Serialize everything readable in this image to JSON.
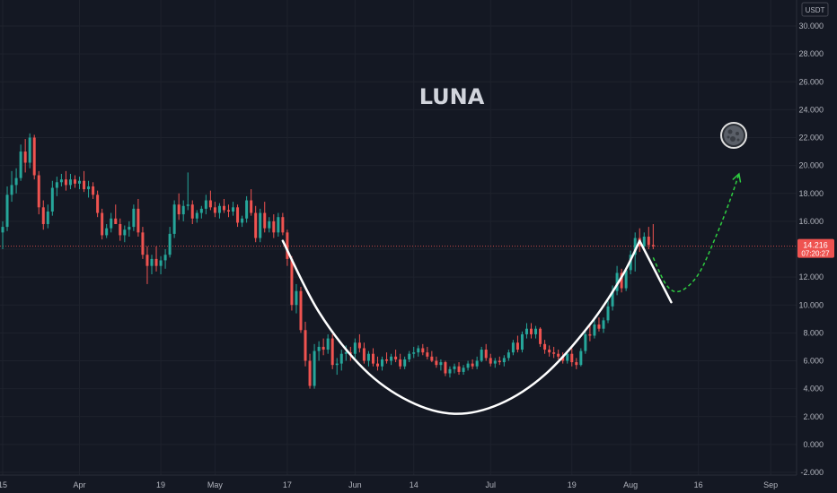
{
  "chart_data": {
    "type": "candlestick",
    "title": "LUNA",
    "currency": "USDT",
    "y_ticks": [
      "30.000",
      "28.000",
      "26.000",
      "24.000",
      "22.000",
      "20.000",
      "18.000",
      "16.000",
      "14.000",
      "12.000",
      "10.000",
      "8.000",
      "6.000",
      "4.000",
      "2.000",
      "0.000",
      "-2.000"
    ],
    "ylim": [
      -2.5,
      31
    ],
    "x_labels": [
      {
        "label": "15",
        "day": 0
      },
      {
        "label": "Apr",
        "day": 17
      },
      {
        "label": "19",
        "day": 35
      },
      {
        "label": "May",
        "day": 47
      },
      {
        "label": "17",
        "day": 63
      },
      {
        "label": "Jun",
        "day": 78
      },
      {
        "label": "14",
        "day": 91
      },
      {
        "label": "Jul",
        "day": 108
      },
      {
        "label": "19",
        "day": 126
      },
      {
        "label": "Aug",
        "day": 139
      },
      {
        "label": "16",
        "day": 154
      },
      {
        "label": "Sep",
        "day": 170
      }
    ],
    "x_range": [
      0,
      181
    ],
    "last_price": {
      "value": "14.216",
      "countdown": "07:20:27",
      "y": 14.216
    },
    "colors": {
      "up": "#26a69a",
      "down": "#ef5350",
      "background": "#141823",
      "grid": "#1e222d",
      "arrow": "#2ecc40",
      "pattern": "#ffffff"
    },
    "candles": [
      [
        0,
        15.2,
        16.0,
        14.0,
        15.6
      ],
      [
        1,
        15.6,
        18.5,
        15.3,
        17.9
      ],
      [
        2,
        17.9,
        19.6,
        17.4,
        18.6
      ],
      [
        3,
        18.6,
        19.8,
        18.0,
        19.1
      ],
      [
        4,
        19.1,
        21.5,
        18.9,
        21.0
      ],
      [
        5,
        21.0,
        21.9,
        19.5,
        20.2
      ],
      [
        6,
        20.2,
        22.3,
        19.8,
        22.0
      ],
      [
        7,
        22.0,
        22.2,
        19.0,
        19.3
      ],
      [
        8,
        19.3,
        19.6,
        16.5,
        17.0
      ],
      [
        9,
        17.0,
        17.5,
        15.4,
        15.8
      ],
      [
        10,
        15.8,
        17.2,
        15.5,
        16.7
      ],
      [
        11,
        16.7,
        18.9,
        16.4,
        18.4
      ],
      [
        12,
        18.4,
        19.2,
        17.8,
        18.8
      ],
      [
        13,
        18.8,
        19.4,
        18.5,
        19.0
      ],
      [
        14,
        19.0,
        19.6,
        18.2,
        18.6
      ],
      [
        15,
        18.6,
        19.4,
        18.3,
        19.0
      ],
      [
        16,
        19.0,
        19.3,
        18.4,
        18.7
      ],
      [
        17,
        18.7,
        19.2,
        18.3,
        18.9
      ],
      [
        18,
        18.9,
        19.6,
        18.1,
        18.3
      ],
      [
        19,
        18.3,
        18.9,
        17.7,
        18.5
      ],
      [
        20,
        18.5,
        18.8,
        17.6,
        17.9
      ],
      [
        21,
        17.9,
        18.2,
        16.3,
        16.6
      ],
      [
        22,
        16.6,
        16.9,
        14.7,
        15.0
      ],
      [
        23,
        15.0,
        15.8,
        14.8,
        15.5
      ],
      [
        24,
        15.5,
        16.6,
        15.2,
        16.2
      ],
      [
        25,
        16.2,
        17.2,
        15.8,
        15.8
      ],
      [
        26,
        15.8,
        16.2,
        14.6,
        15.0
      ],
      [
        27,
        15.0,
        15.7,
        14.5,
        15.4
      ],
      [
        28,
        15.4,
        16.0,
        14.9,
        15.6
      ],
      [
        29,
        15.6,
        17.2,
        15.3,
        16.9
      ],
      [
        30,
        16.9,
        17.6,
        14.9,
        15.2
      ],
      [
        31,
        15.2,
        15.6,
        13.3,
        13.6
      ],
      [
        32,
        13.6,
        14.2,
        11.5,
        12.8
      ],
      [
        33,
        12.8,
        13.6,
        12.2,
        13.3
      ],
      [
        34,
        13.3,
        14.2,
        12.4,
        12.8
      ],
      [
        35,
        12.8,
        13.5,
        12.2,
        13.2
      ],
      [
        36,
        13.2,
        14.0,
        12.6,
        13.6
      ],
      [
        37,
        13.6,
        15.6,
        13.4,
        15.1
      ],
      [
        38,
        15.1,
        17.5,
        14.8,
        17.2
      ],
      [
        39,
        17.2,
        18.0,
        16.1,
        16.5
      ],
      [
        40,
        16.5,
        17.5,
        16.0,
        17.1
      ],
      [
        41,
        17.1,
        19.5,
        16.8,
        17.2
      ],
      [
        42,
        17.2,
        17.5,
        15.8,
        16.2
      ],
      [
        43,
        16.2,
        16.8,
        15.9,
        16.6
      ],
      [
        44,
        16.6,
        17.1,
        16.2,
        16.9
      ],
      [
        45,
        16.9,
        17.9,
        16.5,
        17.5
      ],
      [
        46,
        17.5,
        18.2,
        16.8,
        17.0
      ],
      [
        47,
        17.0,
        17.4,
        16.3,
        16.6
      ],
      [
        48,
        16.6,
        17.3,
        16.2,
        17.1
      ],
      [
        49,
        17.1,
        17.6,
        16.6,
        16.8
      ],
      [
        50,
        16.8,
        17.2,
        16.3,
        16.7
      ],
      [
        51,
        16.7,
        17.4,
        16.4,
        17.0
      ],
      [
        52,
        17.0,
        17.2,
        15.6,
        15.9
      ],
      [
        53,
        15.9,
        16.4,
        15.6,
        16.2
      ],
      [
        54,
        16.2,
        17.8,
        15.9,
        17.5
      ],
      [
        55,
        17.5,
        18.3,
        16.4,
        16.6
      ],
      [
        56,
        16.6,
        17.1,
        14.5,
        14.8
      ],
      [
        57,
        14.8,
        16.9,
        14.5,
        16.6
      ],
      [
        58,
        16.6,
        17.4,
        15.2,
        15.5
      ],
      [
        59,
        15.5,
        16.3,
        15.2,
        16.0
      ],
      [
        60,
        16.0,
        16.5,
        14.8,
        15.2
      ],
      [
        61,
        15.2,
        16.6,
        14.9,
        16.3
      ],
      [
        62,
        16.3,
        16.6,
        15.0,
        15.2
      ],
      [
        63,
        15.2,
        15.4,
        12.8,
        13.3
      ],
      [
        64,
        13.3,
        13.5,
        9.6,
        10.0
      ],
      [
        65,
        10.0,
        11.5,
        9.4,
        11.0
      ],
      [
        66,
        11.0,
        11.3,
        8.0,
        8.2
      ],
      [
        67,
        8.2,
        8.8,
        5.6,
        6.0
      ],
      [
        68,
        6.0,
        6.5,
        4.0,
        4.2
      ],
      [
        69,
        4.2,
        7.2,
        4.0,
        6.7
      ],
      [
        70,
        6.7,
        7.4,
        6.0,
        7.0
      ],
      [
        71,
        7.0,
        7.6,
        6.4,
        6.8
      ],
      [
        72,
        6.8,
        7.9,
        6.5,
        7.6
      ],
      [
        73,
        7.6,
        7.9,
        5.4,
        5.7
      ],
      [
        74,
        5.7,
        6.2,
        5.0,
        5.8
      ],
      [
        75,
        5.8,
        6.8,
        5.3,
        6.5
      ],
      [
        76,
        6.5,
        7.1,
        6.0,
        6.6
      ],
      [
        77,
        6.6,
        7.0,
        6.0,
        6.5
      ],
      [
        78,
        6.5,
        7.6,
        6.2,
        7.3
      ],
      [
        79,
        7.3,
        7.9,
        6.6,
        6.9
      ],
      [
        80,
        6.9,
        7.3,
        5.8,
        6.0
      ],
      [
        81,
        6.0,
        6.7,
        5.6,
        6.5
      ],
      [
        82,
        6.5,
        6.9,
        5.6,
        5.8
      ],
      [
        83,
        5.8,
        6.3,
        5.3,
        5.6
      ],
      [
        84,
        5.6,
        6.3,
        5.3,
        6.1
      ],
      [
        85,
        6.1,
        6.6,
        5.8,
        6.0
      ],
      [
        86,
        6.0,
        6.5,
        5.7,
        6.3
      ],
      [
        87,
        6.3,
        6.8,
        5.9,
        6.1
      ],
      [
        88,
        6.1,
        6.5,
        5.4,
        5.6
      ],
      [
        89,
        5.6,
        6.3,
        5.4,
        6.1
      ],
      [
        90,
        6.1,
        6.7,
        5.9,
        6.5
      ],
      [
        91,
        6.5,
        7.0,
        6.2,
        6.6
      ],
      [
        92,
        6.6,
        7.1,
        6.3,
        6.9
      ],
      [
        93,
        6.9,
        7.2,
        6.4,
        6.6
      ],
      [
        94,
        6.6,
        7.0,
        6.1,
        6.3
      ],
      [
        95,
        6.3,
        6.7,
        5.9,
        6.0
      ],
      [
        96,
        6.0,
        6.3,
        5.5,
        5.7
      ],
      [
        97,
        5.7,
        6.1,
        5.3,
        5.9
      ],
      [
        98,
        5.9,
        6.0,
        4.9,
        5.1
      ],
      [
        99,
        5.1,
        5.6,
        4.8,
        5.4
      ],
      [
        100,
        5.4,
        5.8,
        5.1,
        5.6
      ],
      [
        101,
        5.6,
        5.9,
        5.0,
        5.2
      ],
      [
        102,
        5.2,
        5.7,
        5.0,
        5.5
      ],
      [
        103,
        5.5,
        6.0,
        5.3,
        5.8
      ],
      [
        104,
        5.8,
        6.1,
        5.4,
        5.6
      ],
      [
        105,
        5.6,
        6.3,
        5.4,
        6.0
      ],
      [
        106,
        6.0,
        7.0,
        5.9,
        6.8
      ],
      [
        107,
        6.8,
        7.2,
        6.0,
        6.2
      ],
      [
        108,
        6.2,
        6.5,
        5.6,
        5.8
      ],
      [
        109,
        5.8,
        6.2,
        5.5,
        6.0
      ],
      [
        110,
        6.0,
        6.3,
        5.7,
        5.9
      ],
      [
        111,
        5.9,
        6.4,
        5.6,
        6.2
      ],
      [
        112,
        6.2,
        6.8,
        6.0,
        6.6
      ],
      [
        113,
        6.6,
        7.5,
        6.4,
        7.3
      ],
      [
        114,
        7.3,
        7.8,
        6.6,
        6.8
      ],
      [
        115,
        6.8,
        8.1,
        6.6,
        7.9
      ],
      [
        116,
        7.9,
        8.7,
        7.6,
        8.3
      ],
      [
        117,
        8.3,
        8.7,
        7.6,
        7.9
      ],
      [
        118,
        7.9,
        8.5,
        7.6,
        8.3
      ],
      [
        119,
        8.3,
        8.4,
        7.0,
        7.2
      ],
      [
        120,
        7.2,
        7.5,
        6.5,
        6.8
      ],
      [
        121,
        6.8,
        7.1,
        6.3,
        6.6
      ],
      [
        122,
        6.6,
        7.0,
        6.2,
        6.5
      ],
      [
        123,
        6.5,
        6.8,
        6.1,
        6.3
      ],
      [
        124,
        6.3,
        6.6,
        5.8,
        6.0
      ],
      [
        125,
        6.0,
        6.7,
        5.8,
        6.5
      ],
      [
        126,
        6.5,
        6.9,
        5.6,
        5.9
      ],
      [
        127,
        5.9,
        6.2,
        5.4,
        5.7
      ],
      [
        128,
        5.7,
        6.9,
        5.6,
        6.7
      ],
      [
        129,
        6.7,
        8.1,
        6.5,
        7.9
      ],
      [
        130,
        7.9,
        8.6,
        7.4,
        7.8
      ],
      [
        131,
        7.8,
        8.9,
        7.6,
        8.6
      ],
      [
        132,
        8.6,
        9.1,
        8.1,
        8.3
      ],
      [
        133,
        8.3,
        9.1,
        8.0,
        8.9
      ],
      [
        134,
        8.9,
        10.3,
        8.7,
        9.9
      ],
      [
        135,
        9.9,
        11.4,
        9.6,
        11.0
      ],
      [
        136,
        11.0,
        12.8,
        10.7,
        12.3
      ],
      [
        137,
        12.3,
        12.6,
        10.9,
        11.2
      ],
      [
        138,
        11.2,
        12.7,
        11.0,
        12.5
      ],
      [
        139,
        12.5,
        13.9,
        12.2,
        13.6
      ],
      [
        140,
        13.6,
        15.2,
        12.4,
        14.8
      ],
      [
        141,
        14.8,
        15.5,
        13.8,
        14.2
      ],
      [
        142,
        14.2,
        15.2,
        13.9,
        14.9
      ],
      [
        143,
        14.9,
        15.6,
        14.0,
        14.3
      ],
      [
        144,
        14.3,
        15.8,
        14.0,
        14.216
      ]
    ],
    "pattern_curve": {
      "cup": [
        [
          62,
          14.6
        ],
        [
          70,
          9.5
        ],
        [
          80,
          5.4
        ],
        [
          90,
          3.1
        ],
        [
          100,
          2.2
        ],
        [
          110,
          2.9
        ],
        [
          120,
          5.0
        ],
        [
          130,
          8.6
        ],
        [
          137,
          12.0
        ],
        [
          141,
          14.6
        ]
      ],
      "handle_line": [
        [
          141,
          14.6
        ],
        [
          148,
          10.2
        ]
      ],
      "projection_arrow": [
        [
          144,
          13.4
        ],
        [
          147,
          11.4
        ],
        [
          150,
          11.0
        ],
        [
          154,
          12.2
        ],
        [
          158,
          15.0
        ],
        [
          161,
          17.5
        ],
        [
          163,
          19.4
        ]
      ]
    },
    "icon": "luna-coin-icon"
  }
}
